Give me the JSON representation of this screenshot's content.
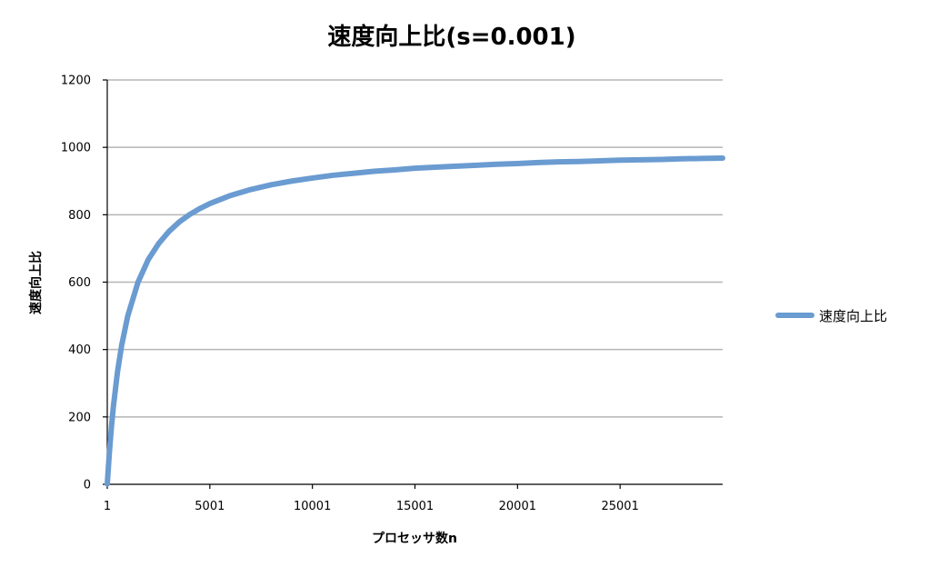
{
  "chart_data": {
    "type": "line",
    "title": "速度向上比(s=0.001)",
    "xlabel": "プロセッサ数n",
    "ylabel": "速度向上比",
    "x_ticks": [
      "1",
      "5001",
      "10001",
      "15001",
      "20001",
      "25001"
    ],
    "y_ticks": [
      "0",
      "200",
      "400",
      "600",
      "800",
      "1000",
      "1200"
    ],
    "xlim": [
      1,
      30001
    ],
    "ylim": [
      0,
      1200
    ],
    "grid": true,
    "legend_position": "right",
    "series": [
      {
        "name": "速度向上比",
        "color": "#6a9bd1",
        "x": [
          1,
          101,
          201,
          301,
          501,
          701,
          1001,
          1501,
          2001,
          2501,
          3001,
          3501,
          4001,
          4501,
          5001,
          6001,
          7001,
          8001,
          9001,
          10001,
          11001,
          12001,
          13001,
          14001,
          15001,
          16001,
          17001,
          18001,
          19001,
          20001,
          21001,
          22001,
          23001,
          24001,
          25001,
          26001,
          27001,
          28001,
          29001,
          30001
        ],
        "y": [
          1,
          92,
          168,
          232,
          334,
          412,
          500,
          600,
          667,
          714,
          750,
          778,
          800,
          818,
          833,
          857,
          875,
          889,
          900,
          909,
          917,
          923,
          929,
          933,
          938,
          941,
          944,
          947,
          950,
          952,
          955,
          957,
          958,
          960,
          962,
          963,
          964,
          966,
          967,
          968
        ]
      }
    ]
  }
}
